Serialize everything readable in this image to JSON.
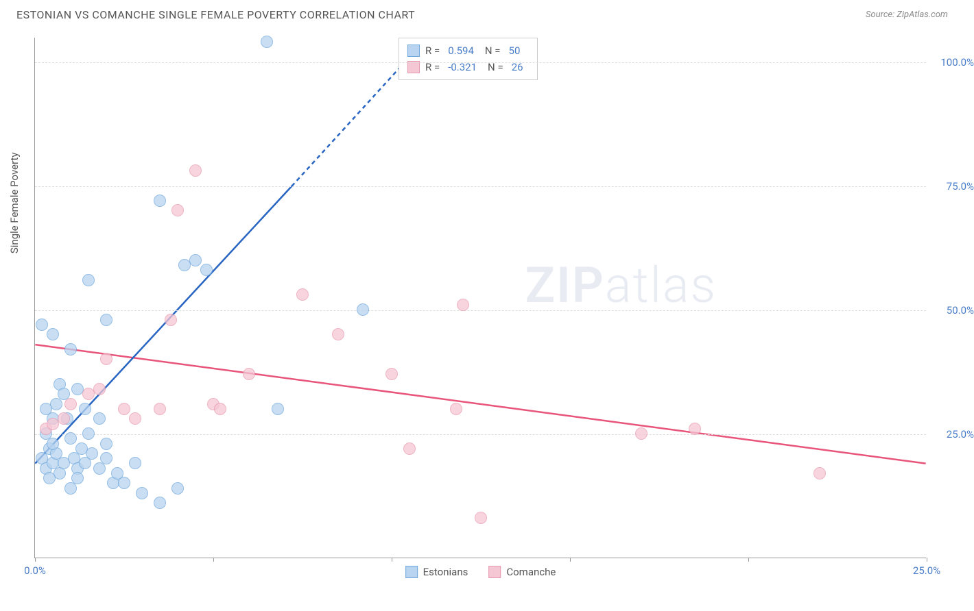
{
  "header": {
    "title": "ESTONIAN VS COMANCHE SINGLE FEMALE POVERTY CORRELATION CHART",
    "source": "Source: ZipAtlas.com"
  },
  "chart": {
    "type": "scatter",
    "ylabel": "Single Female Poverty",
    "xlim": [
      0,
      25
    ],
    "ylim": [
      0,
      105
    ],
    "xticks": [
      0,
      5,
      10,
      15,
      20,
      25
    ],
    "xtick_labels": [
      "0.0%",
      "",
      "",
      "",
      "",
      "25.0%"
    ],
    "yticks": [
      25,
      50,
      75,
      100
    ],
    "ytick_labels": [
      "25.0%",
      "50.0%",
      "75.0%",
      "100.0%"
    ],
    "background_color": "#ffffff",
    "grid_color": "#dddddd",
    "axis_color": "#999999",
    "label_color": "#4a7ec9",
    "watermark": "ZIPatlas"
  },
  "series": {
    "estonians": {
      "label": "Estonians",
      "color_fill": "#b8d4f0",
      "color_stroke": "#6fa8dc",
      "trend_color": "#2865c2",
      "trend_solid": [
        [
          0,
          19
        ],
        [
          7.2,
          75
        ]
      ],
      "trend_dashed": [
        [
          7.2,
          75
        ],
        [
          11,
          105
        ]
      ],
      "r": 0.594,
      "n": 50,
      "marker_radius": 9,
      "points": [
        [
          0.2,
          20
        ],
        [
          0.3,
          18
        ],
        [
          0.4,
          22
        ],
        [
          0.5,
          19
        ],
        [
          0.3,
          25
        ],
        [
          0.6,
          21
        ],
        [
          0.7,
          17
        ],
        [
          0.8,
          19
        ],
        [
          0.4,
          16
        ],
        [
          0.5,
          23
        ],
        [
          0.2,
          47
        ],
        [
          0.9,
          28
        ],
        [
          1.0,
          24
        ],
        [
          1.1,
          20
        ],
        [
          1.2,
          18
        ],
        [
          1.3,
          22
        ],
        [
          1.4,
          19
        ],
        [
          0.6,
          31
        ],
        [
          0.7,
          35
        ],
        [
          0.8,
          33
        ],
        [
          1.5,
          25
        ],
        [
          1.6,
          21
        ],
        [
          1.8,
          18
        ],
        [
          2.0,
          23
        ],
        [
          2.2,
          15
        ],
        [
          0.5,
          45
        ],
        [
          1.0,
          42
        ],
        [
          1.2,
          34
        ],
        [
          1.4,
          30
        ],
        [
          1.8,
          28
        ],
        [
          2.0,
          20
        ],
        [
          2.3,
          17
        ],
        [
          2.5,
          15
        ],
        [
          2.8,
          19
        ],
        [
          3.0,
          13
        ],
        [
          3.5,
          11
        ],
        [
          4.0,
          14
        ],
        [
          1.5,
          56
        ],
        [
          2.0,
          48
        ],
        [
          3.5,
          72
        ],
        [
          4.2,
          59
        ],
        [
          4.5,
          60
        ],
        [
          4.8,
          58
        ],
        [
          6.5,
          104
        ],
        [
          6.8,
          30
        ],
        [
          9.2,
          50
        ],
        [
          1.0,
          14
        ],
        [
          0.3,
          30
        ],
        [
          0.5,
          28
        ],
        [
          1.2,
          16
        ]
      ]
    },
    "comanche": {
      "label": "Comanche",
      "color_fill": "#f5c6d4",
      "color_stroke": "#e89bb0",
      "trend_color": "#e8547a",
      "trend_solid": [
        [
          0,
          43
        ],
        [
          25,
          19
        ]
      ],
      "r": -0.321,
      "n": 26,
      "marker_radius": 9,
      "points": [
        [
          0.3,
          26
        ],
        [
          0.5,
          27
        ],
        [
          1.0,
          31
        ],
        [
          1.5,
          33
        ],
        [
          2.0,
          40
        ],
        [
          2.5,
          30
        ],
        [
          3.5,
          30
        ],
        [
          3.8,
          48
        ],
        [
          4.5,
          78
        ],
        [
          4.0,
          70
        ],
        [
          5.0,
          31
        ],
        [
          5.2,
          30
        ],
        [
          6.0,
          37
        ],
        [
          7.5,
          53
        ],
        [
          8.5,
          45
        ],
        [
          10.0,
          37
        ],
        [
          10.5,
          22
        ],
        [
          12.0,
          51
        ],
        [
          11.8,
          30
        ],
        [
          12.5,
          8
        ],
        [
          17.0,
          25
        ],
        [
          18.5,
          26
        ],
        [
          22.0,
          17
        ],
        [
          2.8,
          28
        ],
        [
          1.8,
          34
        ],
        [
          0.8,
          28
        ]
      ]
    }
  },
  "legend": {
    "rows": [
      {
        "swatch_fill": "#b8d4f0",
        "swatch_stroke": "#6fa8dc",
        "r_label": "R =",
        "r_val": "0.594",
        "n_label": "N =",
        "n_val": "50"
      },
      {
        "swatch_fill": "#f5c6d4",
        "swatch_stroke": "#e89bb0",
        "r_label": "R =",
        "r_val": "-0.321",
        "n_label": "N =",
        "n_val": "26"
      }
    ]
  }
}
